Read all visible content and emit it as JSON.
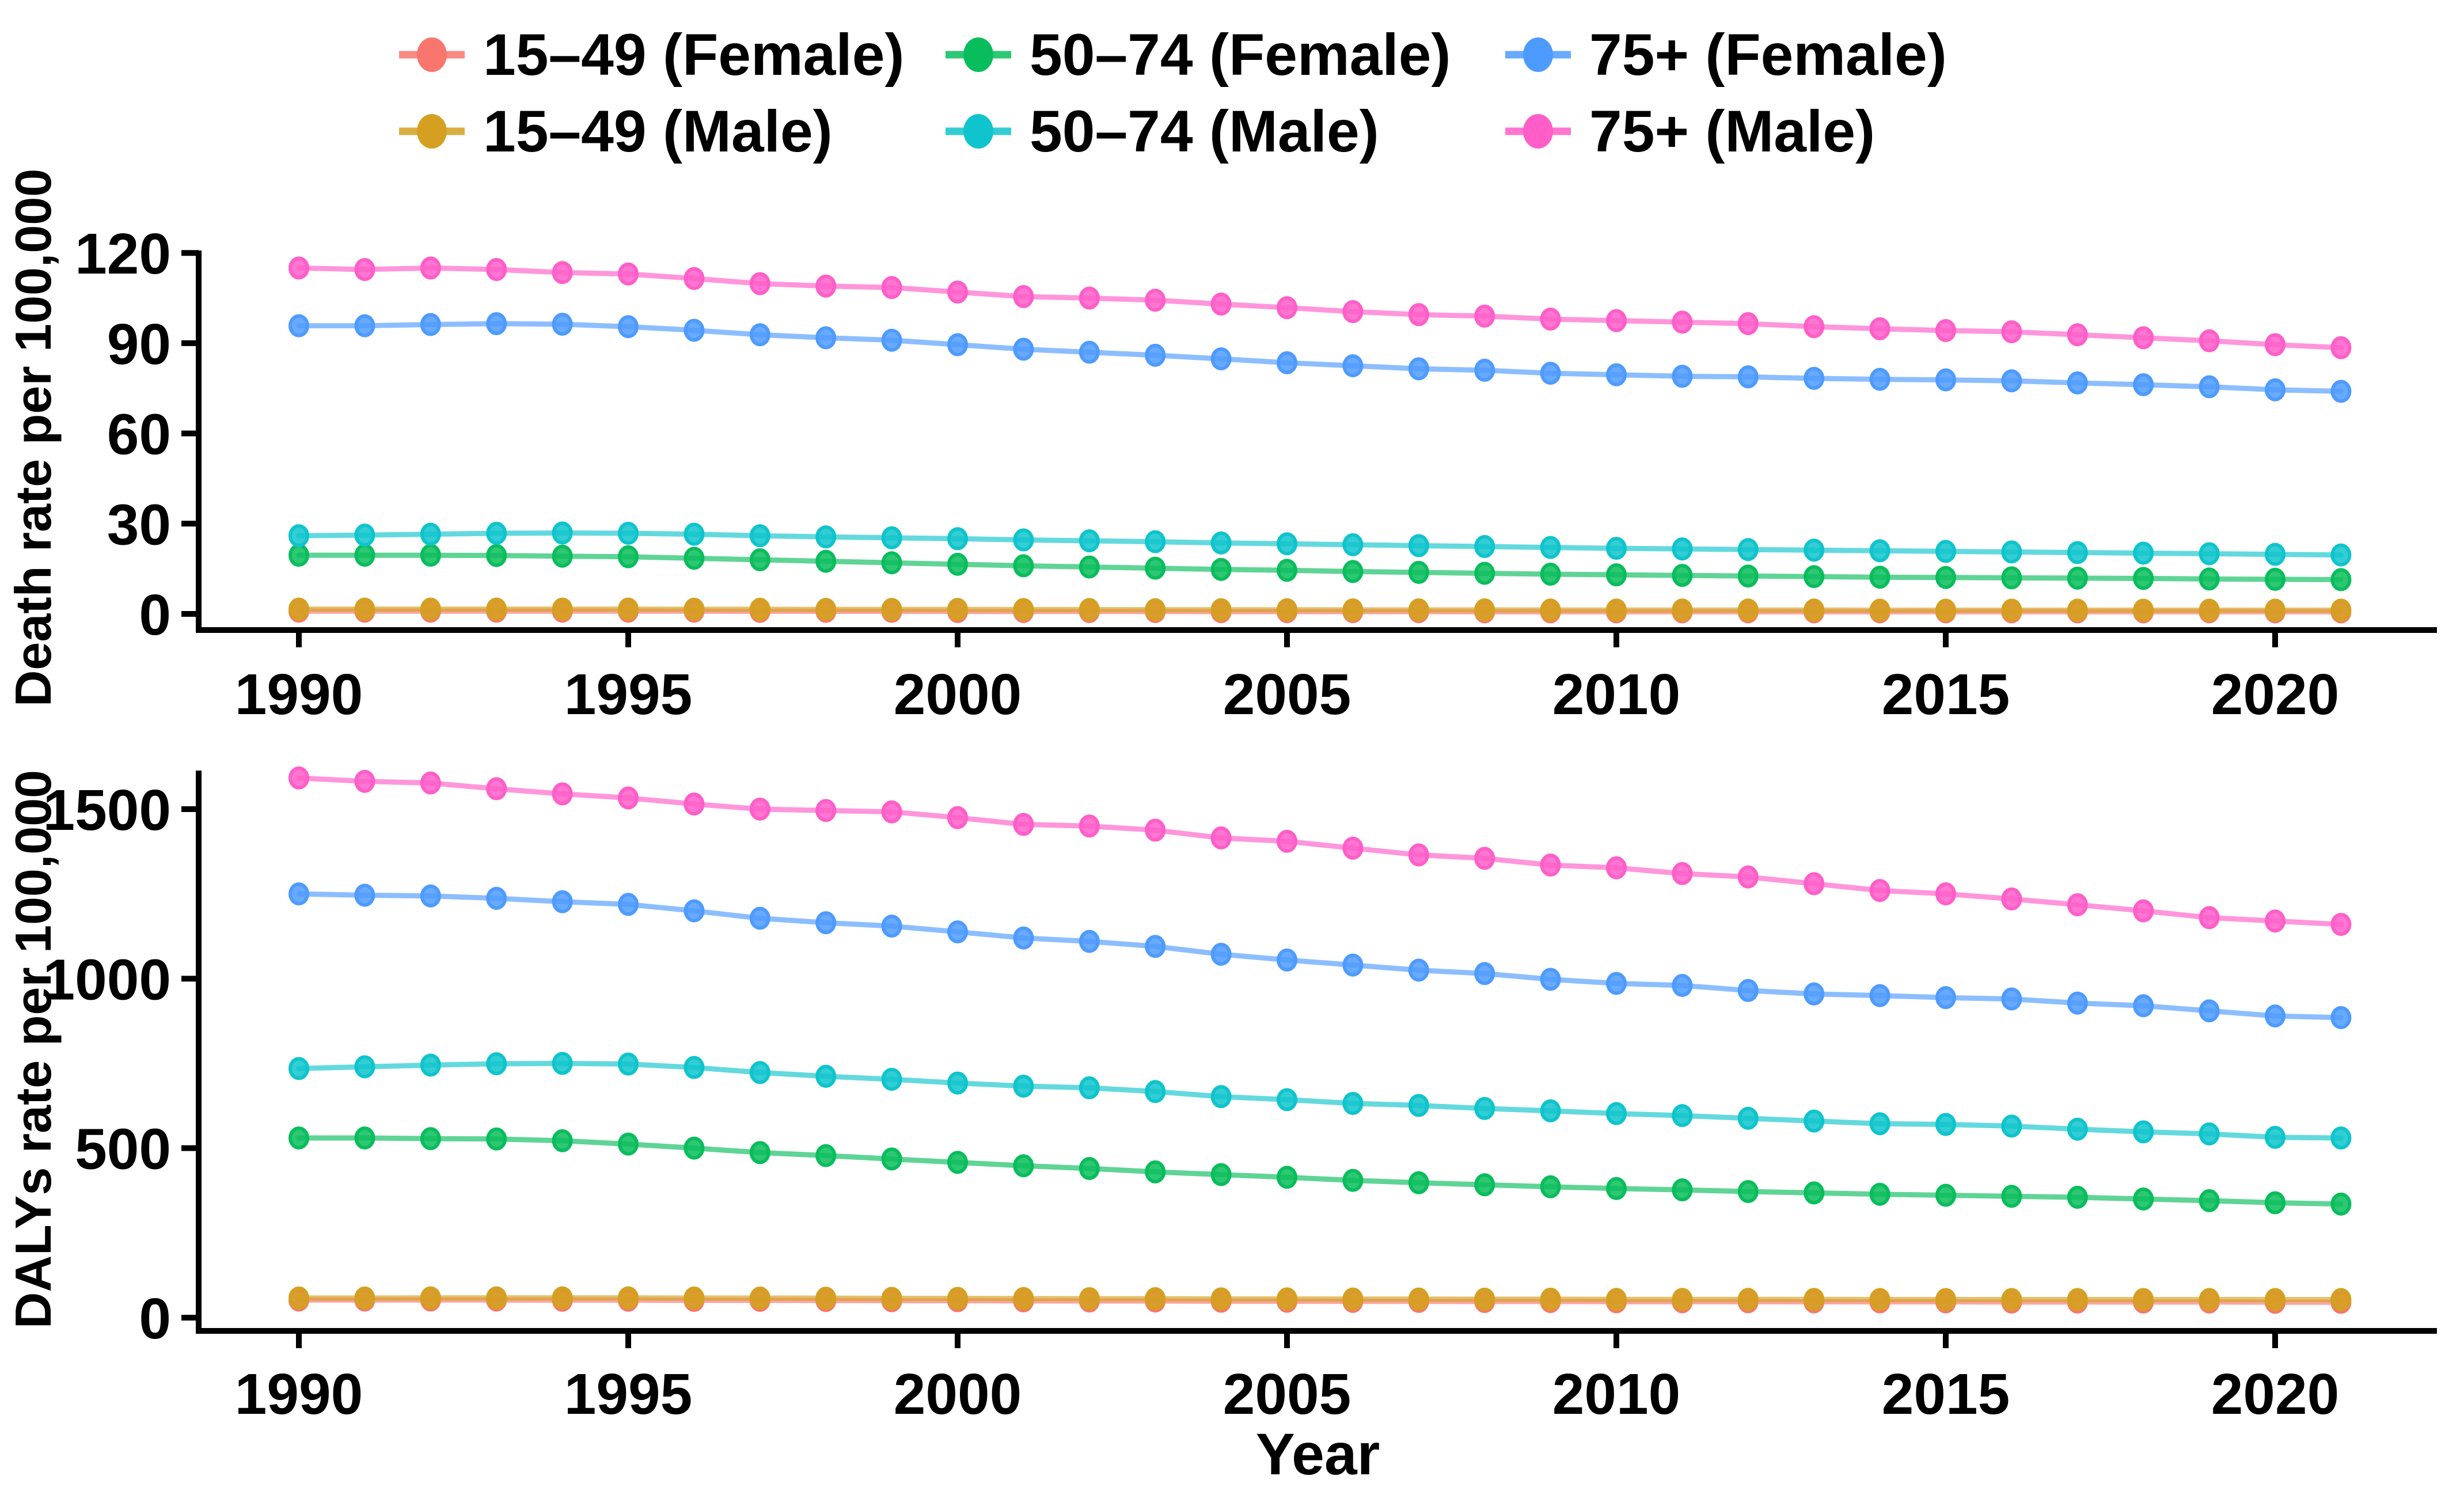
{
  "figure": {
    "background": "#ffffff",
    "text_color": "#000000"
  },
  "legend": {
    "position": "top",
    "items": [
      {
        "label": "15–49 (Female)",
        "color": "#F8766D",
        "row": 0,
        "col": 0
      },
      {
        "label": "50–74 (Female)",
        "color": "#09BD5C",
        "row": 0,
        "col": 1
      },
      {
        "label": "75+ (Female)",
        "color": "#4E9BFF",
        "row": 0,
        "col": 2
      },
      {
        "label": "15–49 (Male)",
        "color": "#D5A021",
        "row": 1,
        "col": 0
      },
      {
        "label": "50–74 (Male)",
        "color": "#0FC4CC",
        "row": 1,
        "col": 1
      },
      {
        "label": "75+ (Male)",
        "color": "#FF5EC9",
        "row": 1,
        "col": 2
      }
    ]
  },
  "chart_data": [
    {
      "type": "line",
      "title": "",
      "xlabel": "",
      "ylabel": "Death rate per 100,000",
      "x": [
        1990,
        1991,
        1992,
        1993,
        1994,
        1995,
        1996,
        1997,
        1998,
        1999,
        2000,
        2001,
        2002,
        2003,
        2004,
        2005,
        2006,
        2007,
        2008,
        2009,
        2010,
        2011,
        2012,
        2013,
        2014,
        2015,
        2016,
        2017,
        2018,
        2019,
        2020,
        2021
      ],
      "x_ticks": [
        1990,
        1995,
        2000,
        2005,
        2010,
        2015,
        2020
      ],
      "y_ticks": [
        0,
        30,
        60,
        90,
        120
      ],
      "ylim": [
        0,
        124
      ],
      "grid": false,
      "series": [
        {
          "name": "15–49 (Female)",
          "color": "#F8766D",
          "values": [
            0.9,
            0.9,
            0.9,
            0.9,
            0.9,
            0.9,
            0.9,
            0.85,
            0.85,
            0.85,
            0.8,
            0.8,
            0.8,
            0.8,
            0.75,
            0.75,
            0.75,
            0.75,
            0.7,
            0.7,
            0.7,
            0.7,
            0.7,
            0.7,
            0.7,
            0.7,
            0.7,
            0.7,
            0.7,
            0.7,
            0.7,
            0.7
          ]
        },
        {
          "name": "50–74 (Female)",
          "color": "#09BD5C",
          "values": [
            19.5,
            19.5,
            19.5,
            19.4,
            19.2,
            19.0,
            18.5,
            18.0,
            17.5,
            17.0,
            16.5,
            16.0,
            15.6,
            15.2,
            14.8,
            14.5,
            14.1,
            13.8,
            13.5,
            13.2,
            13.0,
            12.8,
            12.6,
            12.4,
            12.2,
            12.1,
            12.0,
            11.9,
            11.8,
            11.6,
            11.5,
            11.4
          ]
        },
        {
          "name": "75+ (Female)",
          "color": "#4E9BFF",
          "values": [
            95.8,
            95.8,
            96.2,
            96.5,
            96.3,
            95.5,
            94.3,
            92.8,
            91.8,
            91.0,
            89.5,
            88.0,
            87.0,
            86.0,
            84.8,
            83.5,
            82.5,
            81.5,
            81.0,
            80.0,
            79.5,
            79.0,
            78.8,
            78.3,
            78.0,
            77.8,
            77.5,
            76.8,
            76.2,
            75.5,
            74.5,
            74.0
          ]
        },
        {
          "name": "15–49 (Male)",
          "color": "#D5A021",
          "values": [
            1.6,
            1.6,
            1.6,
            1.6,
            1.6,
            1.6,
            1.55,
            1.55,
            1.5,
            1.5,
            1.5,
            1.45,
            1.45,
            1.4,
            1.4,
            1.4,
            1.35,
            1.35,
            1.35,
            1.3,
            1.3,
            1.3,
            1.3,
            1.3,
            1.25,
            1.25,
            1.25,
            1.25,
            1.25,
            1.25,
            1.25,
            1.25
          ]
        },
        {
          "name": "50–74 (Male)",
          "color": "#0FC4CC",
          "values": [
            26.0,
            26.2,
            26.5,
            26.8,
            26.9,
            26.8,
            26.5,
            26.0,
            25.6,
            25.3,
            25.0,
            24.6,
            24.3,
            24.0,
            23.6,
            23.3,
            23.0,
            22.7,
            22.4,
            22.1,
            21.8,
            21.6,
            21.4,
            21.2,
            21.0,
            20.8,
            20.6,
            20.4,
            20.2,
            20.0,
            19.8,
            19.6
          ]
        },
        {
          "name": "75+ (Male)",
          "color": "#FF5EC9",
          "values": [
            115.0,
            114.5,
            115.0,
            114.5,
            113.5,
            113.0,
            111.5,
            109.8,
            109.0,
            108.5,
            107.0,
            105.5,
            105.0,
            104.3,
            103.0,
            101.8,
            100.5,
            99.5,
            99.0,
            98.0,
            97.5,
            97.0,
            96.5,
            95.5,
            94.8,
            94.2,
            93.8,
            92.8,
            91.8,
            90.8,
            89.5,
            88.5
          ]
        }
      ]
    },
    {
      "type": "line",
      "title": "",
      "xlabel": "Year",
      "ylabel": "DALYs rate per 100,000",
      "x": [
        1990,
        1991,
        1992,
        1993,
        1994,
        1995,
        1996,
        1997,
        1998,
        1999,
        2000,
        2001,
        2002,
        2003,
        2004,
        2005,
        2006,
        2007,
        2008,
        2009,
        2010,
        2011,
        2012,
        2013,
        2014,
        2015,
        2016,
        2017,
        2018,
        2019,
        2020,
        2021
      ],
      "x_ticks": [
        1990,
        1995,
        2000,
        2005,
        2010,
        2015,
        2020
      ],
      "y_ticks": [
        0,
        500,
        1000,
        1500
      ],
      "ylim": [
        0,
        1640
      ],
      "grid": false,
      "series": [
        {
          "name": "15–49 (Female)",
          "color": "#F8766D",
          "values": [
            52,
            52,
            52,
            52,
            51.5,
            51.5,
            51,
            51,
            50.5,
            50,
            50,
            49.5,
            49,
            49,
            48.5,
            48.5,
            48,
            48,
            47.5,
            47.5,
            47,
            47,
            47,
            46.5,
            46.5,
            46.5,
            46,
            46,
            46,
            46,
            45.5,
            45.5
          ]
        },
        {
          "name": "50–74 (Female)",
          "color": "#09BD5C",
          "values": [
            530,
            530,
            528,
            527,
            522,
            512,
            500,
            487,
            478,
            468,
            458,
            448,
            440,
            430,
            422,
            414,
            405,
            398,
            392,
            386,
            381,
            377,
            372,
            368,
            364,
            361,
            358,
            355,
            350,
            345,
            339,
            335
          ]
        },
        {
          "name": "75+ (Female)",
          "color": "#4E9BFF",
          "values": [
            1250,
            1246,
            1244,
            1237,
            1227,
            1219,
            1200,
            1178,
            1165,
            1155,
            1138,
            1120,
            1110,
            1095,
            1072,
            1055,
            1040,
            1025,
            1015,
            998,
            986,
            980,
            965,
            955,
            950,
            944,
            940,
            928,
            920,
            905,
            890,
            885
          ]
        },
        {
          "name": "15–49 (Male)",
          "color": "#D5A021",
          "values": [
            58,
            58,
            58.5,
            58.5,
            58.5,
            58.5,
            58,
            58,
            57.5,
            57,
            57,
            56.5,
            56,
            56,
            55.5,
            55.5,
            55,
            55,
            54.5,
            54.5,
            54,
            54,
            54,
            54,
            53.5,
            53.5,
            53.5,
            53.5,
            53.5,
            53.5,
            53.5,
            53.5
          ]
        },
        {
          "name": "50–74 (Male)",
          "color": "#0FC4CC",
          "values": [
            735,
            740,
            745,
            749,
            750,
            748,
            738,
            723,
            712,
            703,
            692,
            683,
            678,
            667,
            652,
            643,
            632,
            626,
            617,
            610,
            602,
            596,
            588,
            580,
            572,
            570,
            565,
            556,
            548,
            542,
            532,
            530
          ]
        },
        {
          "name": "75+ (Male)",
          "color": "#FF5EC9",
          "values": [
            1592,
            1582,
            1577,
            1560,
            1545,
            1533,
            1515,
            1500,
            1496,
            1492,
            1475,
            1455,
            1450,
            1438,
            1415,
            1405,
            1385,
            1365,
            1355,
            1335,
            1327,
            1310,
            1300,
            1280,
            1260,
            1250,
            1235,
            1218,
            1200,
            1180,
            1170,
            1160
          ]
        }
      ]
    }
  ]
}
